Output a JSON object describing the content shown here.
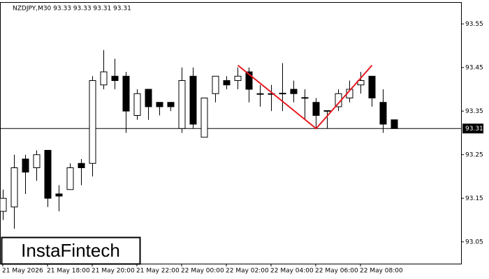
{
  "chart_data": {
    "type": "candlestick",
    "header": "NZDJPY,M30  93.33 93.33 93.31 93.31",
    "logo": "InstaFintech",
    "categories": [
      "21 May 2026",
      null,
      null,
      null,
      "21 May 18:00",
      null,
      null,
      null,
      "21 May 20:00",
      null,
      null,
      null,
      "21 May 22:00",
      null,
      null,
      null,
      "22 May 00:00",
      null,
      null,
      null,
      "22 May 02:00",
      null,
      null,
      null,
      "22 May 04:00",
      null,
      null,
      null,
      "22 May 06:00",
      null,
      null,
      null,
      "22 May 08:00",
      null,
      null,
      null
    ],
    "open": [
      93.12,
      93.13,
      93.24,
      93.22,
      93.26,
      93.16,
      93.17,
      93.23,
      93.23,
      93.41,
      93.43,
      93.43,
      93.34,
      93.4,
      93.37,
      93.37,
      93.31,
      93.43,
      93.29,
      93.39,
      93.42,
      93.42,
      93.44,
      93.39,
      93.39,
      93.39,
      93.4,
      93.38,
      93.37,
      93.35,
      93.36,
      93.38,
      93.41,
      93.43,
      93.37,
      93.33
    ],
    "high": [
      93.17,
      93.25,
      93.25,
      93.26,
      93.26,
      93.18,
      93.23,
      93.24,
      93.43,
      93.49,
      93.47,
      93.44,
      93.4,
      93.4,
      93.37,
      93.37,
      93.45,
      93.45,
      93.38,
      93.43,
      93.43,
      93.45,
      93.45,
      93.41,
      93.41,
      93.46,
      93.42,
      93.4,
      93.38,
      93.35,
      93.4,
      93.42,
      93.44,
      93.43,
      93.4,
      93.33
    ],
    "low": [
      93.1,
      93.08,
      93.16,
      93.19,
      93.13,
      93.12,
      93.17,
      93.18,
      93.2,
      93.4,
      93.4,
      93.3,
      93.33,
      93.33,
      93.34,
      93.35,
      93.3,
      93.31,
      93.29,
      93.37,
      93.4,
      93.4,
      93.37,
      93.36,
      93.35,
      93.35,
      93.37,
      93.33,
      93.31,
      93.31,
      93.35,
      93.37,
      93.39,
      93.36,
      93.3,
      93.31
    ],
    "close": [
      93.15,
      93.22,
      93.21,
      93.25,
      93.15,
      93.155,
      93.22,
      93.22,
      93.42,
      93.44,
      93.42,
      93.35,
      93.39,
      93.36,
      93.36,
      93.36,
      93.42,
      93.32,
      93.38,
      93.43,
      93.41,
      93.43,
      93.4,
      93.389,
      93.39,
      93.391,
      93.39,
      93.381,
      93.34,
      93.351,
      93.39,
      93.4,
      93.42,
      93.38,
      93.32,
      93.31
    ],
    "up_color": "#ffffff",
    "down_color": "#000000",
    "pattern": {
      "color": "#e8191f",
      "values": [
        93.455,
        93.31,
        93.455
      ]
    },
    "price_line": {
      "value": 93.31,
      "label": "93.31"
    },
    "ylim": [
      93.0,
      93.6
    ],
    "yticks": [
      93.05,
      93.15,
      93.25,
      93.35,
      93.45,
      93.55
    ]
  }
}
